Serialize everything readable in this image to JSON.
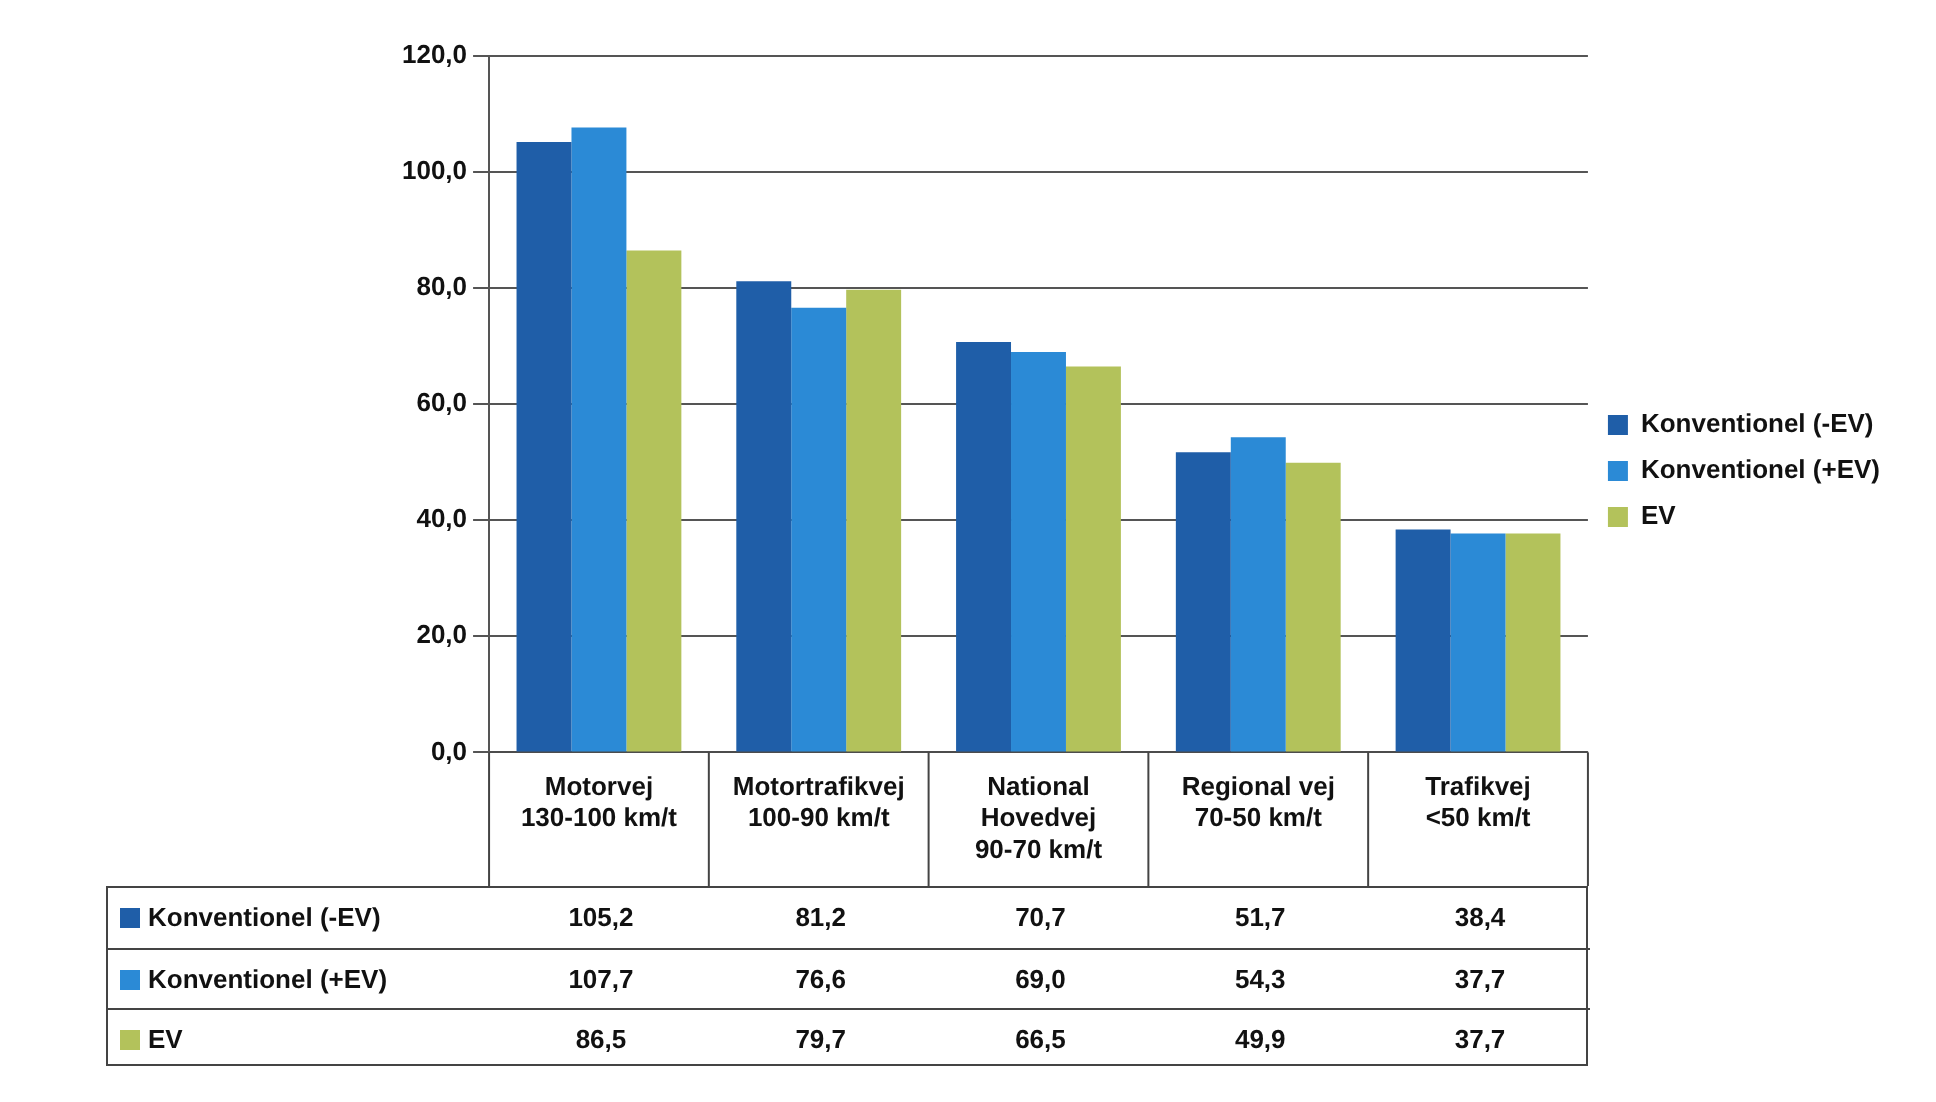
{
  "chart_data": {
    "type": "bar",
    "categories": [
      "Motorvej\n130-100 km/t",
      "Motortrafikvej\n100-90 km/t",
      "National Hovedvej\n90-70 km/t",
      "Regional vej\n70-50 km/t",
      "Trafikvej\n<50 km/t"
    ],
    "series": [
      {
        "name": "Konventionel (-EV)",
        "color": "#1f5ea8",
        "values": [
          105.2,
          81.2,
          70.7,
          51.7,
          38.4
        ],
        "value_labels": [
          "105,2",
          "81,2",
          "70,7",
          "51,7",
          "38,4"
        ]
      },
      {
        "name": "Konventionel (+EV)",
        "color": "#2b8ad6",
        "values": [
          107.7,
          76.6,
          69.0,
          54.3,
          37.7
        ],
        "value_labels": [
          "107,7",
          "76,6",
          "69,0",
          "54,3",
          "37,7"
        ]
      },
      {
        "name": "EV",
        "color": "#b3c25b",
        "values": [
          86.5,
          79.7,
          66.5,
          49.9,
          37.7
        ],
        "value_labels": [
          "86,5",
          "79,7",
          "66,5",
          "49,9",
          "37,7"
        ]
      }
    ],
    "ylim": [
      0,
      120
    ],
    "yticks": [
      {
        "value": 0,
        "label": "0,0"
      },
      {
        "value": 20,
        "label": "20,0"
      },
      {
        "value": 40,
        "label": "40,0"
      },
      {
        "value": 60,
        "label": "60,0"
      },
      {
        "value": 80,
        "label": "80,0"
      },
      {
        "value": 100,
        "label": "100,0"
      },
      {
        "value": 120,
        "label": "120,0"
      }
    ],
    "grid": "y",
    "legend": "right"
  }
}
